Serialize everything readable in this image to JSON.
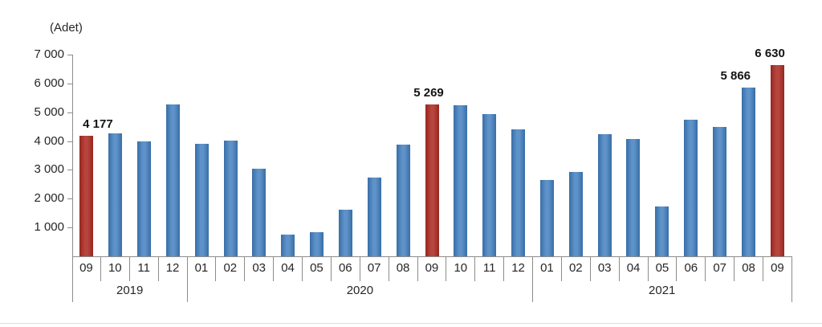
{
  "chart_data": {
    "type": "bar",
    "ylabel": "(Adet)",
    "xlabel": "",
    "ylim": [
      0,
      7000
    ],
    "ytick_step": 1000,
    "grid": false,
    "legend": false,
    "yticks": [
      {
        "value": 7000,
        "label": "7 000"
      },
      {
        "value": 6000,
        "label": "6 000"
      },
      {
        "value": 5000,
        "label": "5 000"
      },
      {
        "value": 4000,
        "label": "4 000"
      },
      {
        "value": 3000,
        "label": "3 000"
      },
      {
        "value": 2000,
        "label": "2 000"
      },
      {
        "value": 1000,
        "label": "1 000"
      }
    ],
    "categories": [
      "09",
      "10",
      "11",
      "12",
      "01",
      "02",
      "03",
      "04",
      "05",
      "06",
      "07",
      "08",
      "09",
      "10",
      "11",
      "12",
      "01",
      "02",
      "03",
      "04",
      "05",
      "06",
      "07",
      "08",
      "09"
    ],
    "year_groups": [
      {
        "label": "2019",
        "span": 4
      },
      {
        "label": "2020",
        "span": 12
      },
      {
        "label": "2021",
        "span": 9
      }
    ],
    "values": [
      4177,
      4280,
      3980,
      5280,
      3900,
      4020,
      3030,
      760,
      840,
      1620,
      2730,
      3880,
      5269,
      5250,
      4940,
      4410,
      2640,
      2940,
      4230,
      4070,
      1730,
      4730,
      4500,
      5866,
      6630
    ],
    "highlight_indices": [
      0,
      12,
      24
    ],
    "data_labels": [
      {
        "index": 0,
        "text": "4 177",
        "dx": 14
      },
      {
        "index": 12,
        "text": "5 269",
        "dx": -4
      },
      {
        "index": 23,
        "text": "5 866",
        "dx": -16
      },
      {
        "index": 24,
        "text": "6 630",
        "dx": -9
      }
    ],
    "colors": {
      "bar": "#3F7DBE",
      "highlight": "#AC2B23",
      "axis": "#8c8c8c",
      "text": "#262626",
      "data_label_text": "#141414"
    }
  }
}
